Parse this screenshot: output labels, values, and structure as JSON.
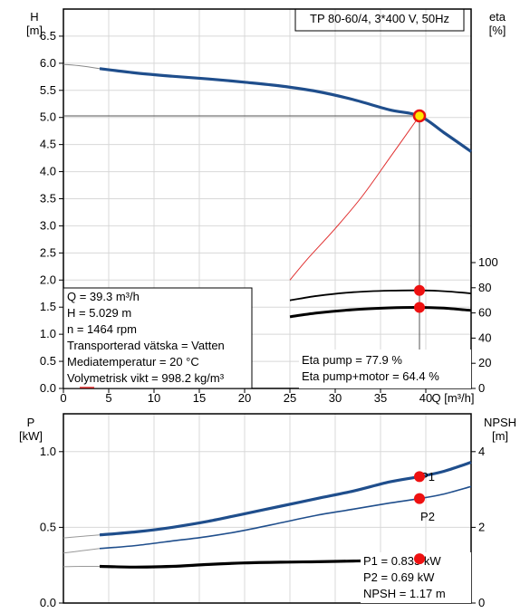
{
  "chart_data": [
    {
      "type": "line",
      "title": "TP 80-60/4, 3*400 V, 50Hz",
      "xlabel": "Q [m³/h]",
      "ylabel_left": [
        "H",
        "[m]"
      ],
      "ylabel_right": [
        "eta",
        "[%]"
      ],
      "xlim": [
        0,
        45
      ],
      "ylim_left": [
        0,
        7
      ],
      "ylim_right": [
        0,
        100
      ],
      "x_ticks": [
        "0",
        "5",
        "10",
        "15",
        "20",
        "25",
        "30",
        "35",
        "40"
      ],
      "y_ticks_left": [
        "0.0",
        "0.5",
        "1.0",
        "1.5",
        "2.0",
        "2.5",
        "3.0",
        "3.5",
        "4.0",
        "4.5",
        "5.0",
        "5.5",
        "6.0",
        "6.5"
      ],
      "y_ticks_right": [
        "0",
        "20",
        "40",
        "60",
        "80",
        "100"
      ],
      "series": [
        {
          "role": "H",
          "color": "#1f4e8c",
          "x": [
            4,
            8,
            12,
            16,
            20,
            24,
            28,
            32,
            36,
            39.3,
            42,
            45
          ],
          "y": [
            5.9,
            5.82,
            5.76,
            5.71,
            5.65,
            5.58,
            5.48,
            5.33,
            5.14,
            5.029,
            4.72,
            4.37
          ]
        },
        {
          "role": "H-low-flow",
          "color": "#888888",
          "x": [
            0,
            2,
            4
          ],
          "y": [
            5.98,
            5.95,
            5.9
          ]
        },
        {
          "role": "system-curve",
          "color": "#e03030",
          "x": [
            25,
            27,
            30,
            33,
            36,
            39.3
          ],
          "y": [
            2.0,
            2.4,
            2.95,
            3.55,
            4.25,
            5.029
          ]
        },
        {
          "role": "eta-pump",
          "color": "#000000",
          "x": [
            25,
            28,
            32,
            36,
            39.3,
            42,
            45
          ],
          "y": [
            70,
            73.5,
            76.5,
            77.7,
            77.9,
            77.3,
            75.5
          ]
        },
        {
          "role": "eta-pump-motor",
          "color": "#000000",
          "x": [
            25,
            28,
            32,
            36,
            39.3,
            42,
            45
          ],
          "y": [
            57,
            60,
            62.6,
            64,
            64.4,
            63.8,
            62
          ]
        }
      ],
      "operating_point": {
        "Q": 39.3,
        "H": 5.029,
        "eta_pump": 77.9,
        "eta_pump_motor": 64.4
      },
      "info_left": [
        "Q = 39.3 m³/h",
        "H = 5.029 m",
        "n = 1464 rpm",
        "Transporterad vätska = Vatten",
        "Mediatemperatur = 20 °C",
        "Volymetrisk vikt = 998.2 kg/m³"
      ],
      "info_right": [
        "Eta pump = 77.9 %",
        "Eta pump+motor = 64.4 %"
      ]
    },
    {
      "type": "line",
      "ylabel_left": [
        "P",
        "[kW]"
      ],
      "ylabel_right": [
        "NPSH",
        "[m]"
      ],
      "xlim": [
        0,
        45
      ],
      "ylim_left": [
        0,
        1.25
      ],
      "ylim_right": [
        0,
        5
      ],
      "y_ticks_left": [
        "0.0",
        "0.5",
        "1.0"
      ],
      "y_ticks_right": [
        "0",
        "2",
        "4"
      ],
      "series": [
        {
          "name": "P1",
          "color": "#1f4e8c",
          "x": [
            4,
            8,
            12,
            16,
            20,
            24,
            28,
            32,
            36,
            39.3,
            42,
            45
          ],
          "y": [
            0.45,
            0.47,
            0.5,
            0.54,
            0.59,
            0.64,
            0.69,
            0.74,
            0.8,
            0.835,
            0.87,
            0.93
          ]
        },
        {
          "name": "P2",
          "color": "#1f4e8c",
          "x": [
            4,
            8,
            12,
            16,
            20,
            24,
            28,
            32,
            36,
            39.3,
            42,
            45
          ],
          "y": [
            0.36,
            0.38,
            0.41,
            0.44,
            0.48,
            0.53,
            0.58,
            0.62,
            0.66,
            0.69,
            0.72,
            0.77
          ]
        },
        {
          "role": "P1-low-flow",
          "color": "#999999",
          "x": [
            0,
            2,
            4
          ],
          "y": [
            0.43,
            0.44,
            0.45
          ]
        },
        {
          "role": "P2-low-flow",
          "color": "#999999",
          "x": [
            0,
            2,
            4
          ],
          "y": [
            0.33,
            0.345,
            0.36
          ]
        },
        {
          "role": "NPSH",
          "color": "#000000",
          "x": [
            4,
            8,
            12,
            16,
            20,
            24,
            28,
            32,
            36,
            39.3
          ],
          "y": [
            0.97,
            0.95,
            0.97,
            1.02,
            1.06,
            1.08,
            1.09,
            1.11,
            1.13,
            1.17
          ]
        },
        {
          "role": "NPSH-low-flow",
          "color": "#999999",
          "x": [
            0,
            2,
            4
          ],
          "y": [
            0.96,
            0.97,
            0.97
          ]
        }
      ],
      "operating_point": {
        "Q": 39.3,
        "P1": 0.835,
        "P2": 0.69,
        "NPSH": 1.17
      },
      "info_right": [
        "P1 = 0.835 kW",
        "P2 = 0.69 kW",
        "NPSH = 1.17 m"
      ]
    }
  ]
}
